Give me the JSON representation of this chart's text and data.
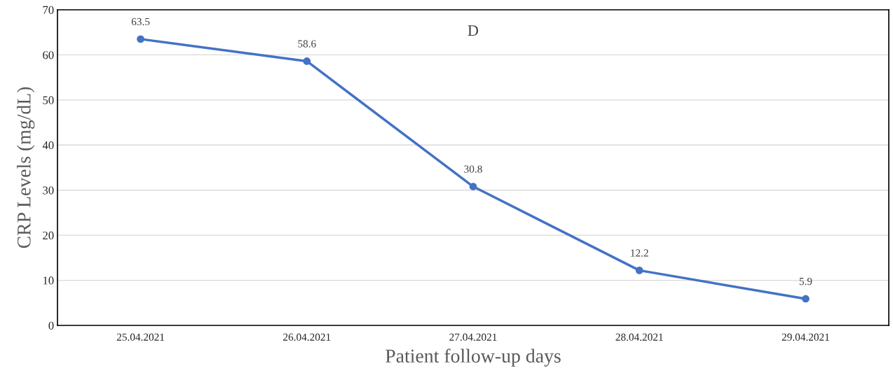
{
  "chart_data": {
    "type": "line",
    "xlabel": "Patient follow-up days",
    "ylabel": "CRP Levels (mg/dL)",
    "annotations": [
      "D"
    ],
    "categories": [
      "25.04.2021",
      "26.04.2021",
      "27.04.2021",
      "28.04.2021",
      "29.04.2021"
    ],
    "series": [
      {
        "color": "#4472c4",
        "values": [
          63.5,
          58.6,
          30.8,
          12.2,
          5.9
        ]
      }
    ],
    "ylim": [
      0,
      70
    ],
    "yticks": [
      0,
      10,
      20,
      30,
      40,
      50,
      60,
      70
    ],
    "grid": "y",
    "marker": "circle",
    "line_style": "solid",
    "data_labels": true
  }
}
